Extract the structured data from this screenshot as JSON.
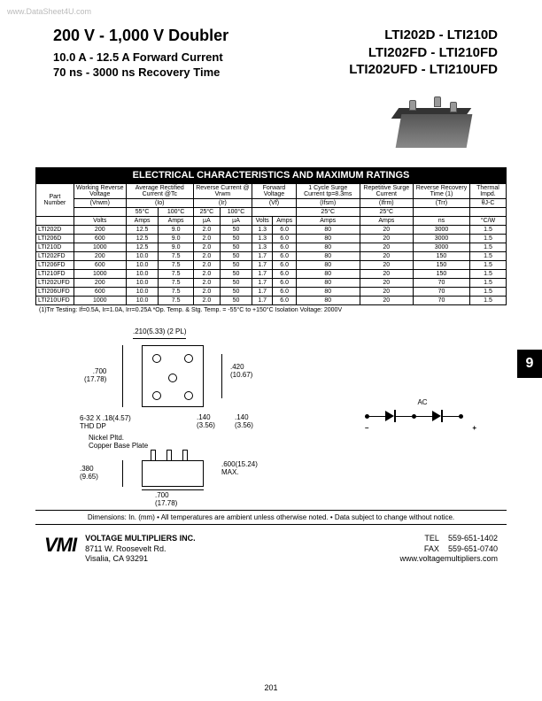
{
  "watermark": "www.DataSheet4U.com",
  "header": {
    "title": "200 V - 1,000 V Doubler",
    "sub1": "10.0 A - 12.5 A Forward Current",
    "sub2": "70 ns - 3000 ns Recovery Time",
    "parts": [
      "LTI202D - LTI210D",
      "LTI202FD - LTI210FD",
      "LTI202UFD - LTI210UFD"
    ]
  },
  "table": {
    "title": "ELECTRICAL CHARACTERISTICS AND MAXIMUM RATINGS",
    "columns": [
      {
        "name": "Part Number",
        "sym": "",
        "unit": ""
      },
      {
        "name": "Working Reverse Voltage",
        "sym": "(Vrwm)",
        "unit": "Volts"
      },
      {
        "name": "Average Rectified Current @Tc",
        "sym": "(Io)",
        "unit": "Amps",
        "temps": [
          "55°C",
          "100°C"
        ]
      },
      {
        "name": "Reverse Current @ Vrwm",
        "sym": "(Ir)",
        "unit": "µA",
        "temps": [
          "25°C",
          "100°C"
        ]
      },
      {
        "name": "Forward Voltage",
        "sym": "(Vf)",
        "unit": [
          "Volts",
          "Amps"
        ]
      },
      {
        "name": "1 Cycle Surge Current tp=8.3ms",
        "sym": "(Ifsm)",
        "unit": "Amps",
        "temps": [
          "25°C"
        ]
      },
      {
        "name": "Repetitive Surge Current",
        "sym": "(Ifrm)",
        "unit": "Amps",
        "temps": [
          "25°C"
        ]
      },
      {
        "name": "Reverse Recovery Time (1)",
        "sym": "(Trr)",
        "unit": "ns"
      },
      {
        "name": "Thermal Impd.",
        "sym": "θJ-C",
        "unit": "°C/W"
      }
    ],
    "groups": [
      {
        "rows": [
          {
            "pn": "LTI202D",
            "vrwm": "200",
            "io55": "12.5",
            "io100": "9.0",
            "ir25": "2.0",
            "ir100": "50",
            "vf": "1.3",
            "vfa": "6.0",
            "ifsm": "80",
            "ifrm": "20",
            "trr": "3000",
            "th": "1.5"
          },
          {
            "pn": "LTI206D",
            "vrwm": "600",
            "io55": "12.5",
            "io100": "9.0",
            "ir25": "2.0",
            "ir100": "50",
            "vf": "1.3",
            "vfa": "6.0",
            "ifsm": "80",
            "ifrm": "20",
            "trr": "3000",
            "th": "1.5"
          },
          {
            "pn": "LTI210D",
            "vrwm": "1000",
            "io55": "12.5",
            "io100": "9.0",
            "ir25": "2.0",
            "ir100": "50",
            "vf": "1.3",
            "vfa": "6.0",
            "ifsm": "80",
            "ifrm": "20",
            "trr": "3000",
            "th": "1.5"
          }
        ]
      },
      {
        "rows": [
          {
            "pn": "LTI202FD",
            "vrwm": "200",
            "io55": "10.0",
            "io100": "7.5",
            "ir25": "2.0",
            "ir100": "50",
            "vf": "1.7",
            "vfa": "6.0",
            "ifsm": "80",
            "ifrm": "20",
            "trr": "150",
            "th": "1.5"
          },
          {
            "pn": "LTI206FD",
            "vrwm": "600",
            "io55": "10.0",
            "io100": "7.5",
            "ir25": "2.0",
            "ir100": "50",
            "vf": "1.7",
            "vfa": "6.0",
            "ifsm": "80",
            "ifrm": "20",
            "trr": "150",
            "th": "1.5"
          },
          {
            "pn": "LTI210FD",
            "vrwm": "1000",
            "io55": "10.0",
            "io100": "7.5",
            "ir25": "2.0",
            "ir100": "50",
            "vf": "1.7",
            "vfa": "6.0",
            "ifsm": "80",
            "ifrm": "20",
            "trr": "150",
            "th": "1.5"
          }
        ]
      },
      {
        "rows": [
          {
            "pn": "LTI202UFD",
            "vrwm": "200",
            "io55": "10.0",
            "io100": "7.5",
            "ir25": "2.0",
            "ir100": "50",
            "vf": "1.7",
            "vfa": "6.0",
            "ifsm": "80",
            "ifrm": "20",
            "trr": "70",
            "th": "1.5"
          },
          {
            "pn": "LTI206UFD",
            "vrwm": "600",
            "io55": "10.0",
            "io100": "7.5",
            "ir25": "2.0",
            "ir100": "50",
            "vf": "1.7",
            "vfa": "6.0",
            "ifsm": "80",
            "ifrm": "20",
            "trr": "70",
            "th": "1.5"
          },
          {
            "pn": "LTI210UFD",
            "vrwm": "1000",
            "io55": "10.0",
            "io100": "7.5",
            "ir25": "2.0",
            "ir100": "50",
            "vf": "1.7",
            "vfa": "6.0",
            "ifsm": "80",
            "ifrm": "20",
            "trr": "70",
            "th": "1.5"
          }
        ]
      }
    ],
    "footnote": "(1)Trr Testing: If=0.5A, Ir=1.0A, Irr=0.25A   *Op. Temp. & Stg. Temp. = -55°C to +150°C   Isolation Voltage: 2000V"
  },
  "page_tab": "9",
  "drawing": {
    "labels": {
      "d210": ".210(5.33) (2 PL)",
      "d700": ".700\n(17.78)",
      "thd": "6-32 X .18(4.57)\nTHD DP",
      "nickel": "Nickel Pltd.\nCopper Base Plate",
      "d380": ".380\n(9.65)",
      "d140a": ".140\n(3.56)",
      "d140b": ".140\n(3.56)",
      "d420": ".420\n(10.67)",
      "d600": ".600(15.24)\nMAX.",
      "d700b": ".700\n(17.78)",
      "ac": "AC",
      "plus": "+",
      "minus": "–"
    }
  },
  "dims_note": "Dimensions: In. (mm) • All temperatures are ambient unless otherwise noted. • Data subject to change without notice.",
  "footer": {
    "logo": "VMI",
    "company": "VOLTAGE MULTIPLIERS INC.",
    "addr1": "8711 W. Roosevelt Rd.",
    "addr2": "Visalia, CA 93291",
    "tel_label": "TEL",
    "tel": "559-651-1402",
    "fax_label": "FAX",
    "fax": "559-651-0740",
    "web": "www.voltagemultipliers.com"
  },
  "pagenum": "201"
}
